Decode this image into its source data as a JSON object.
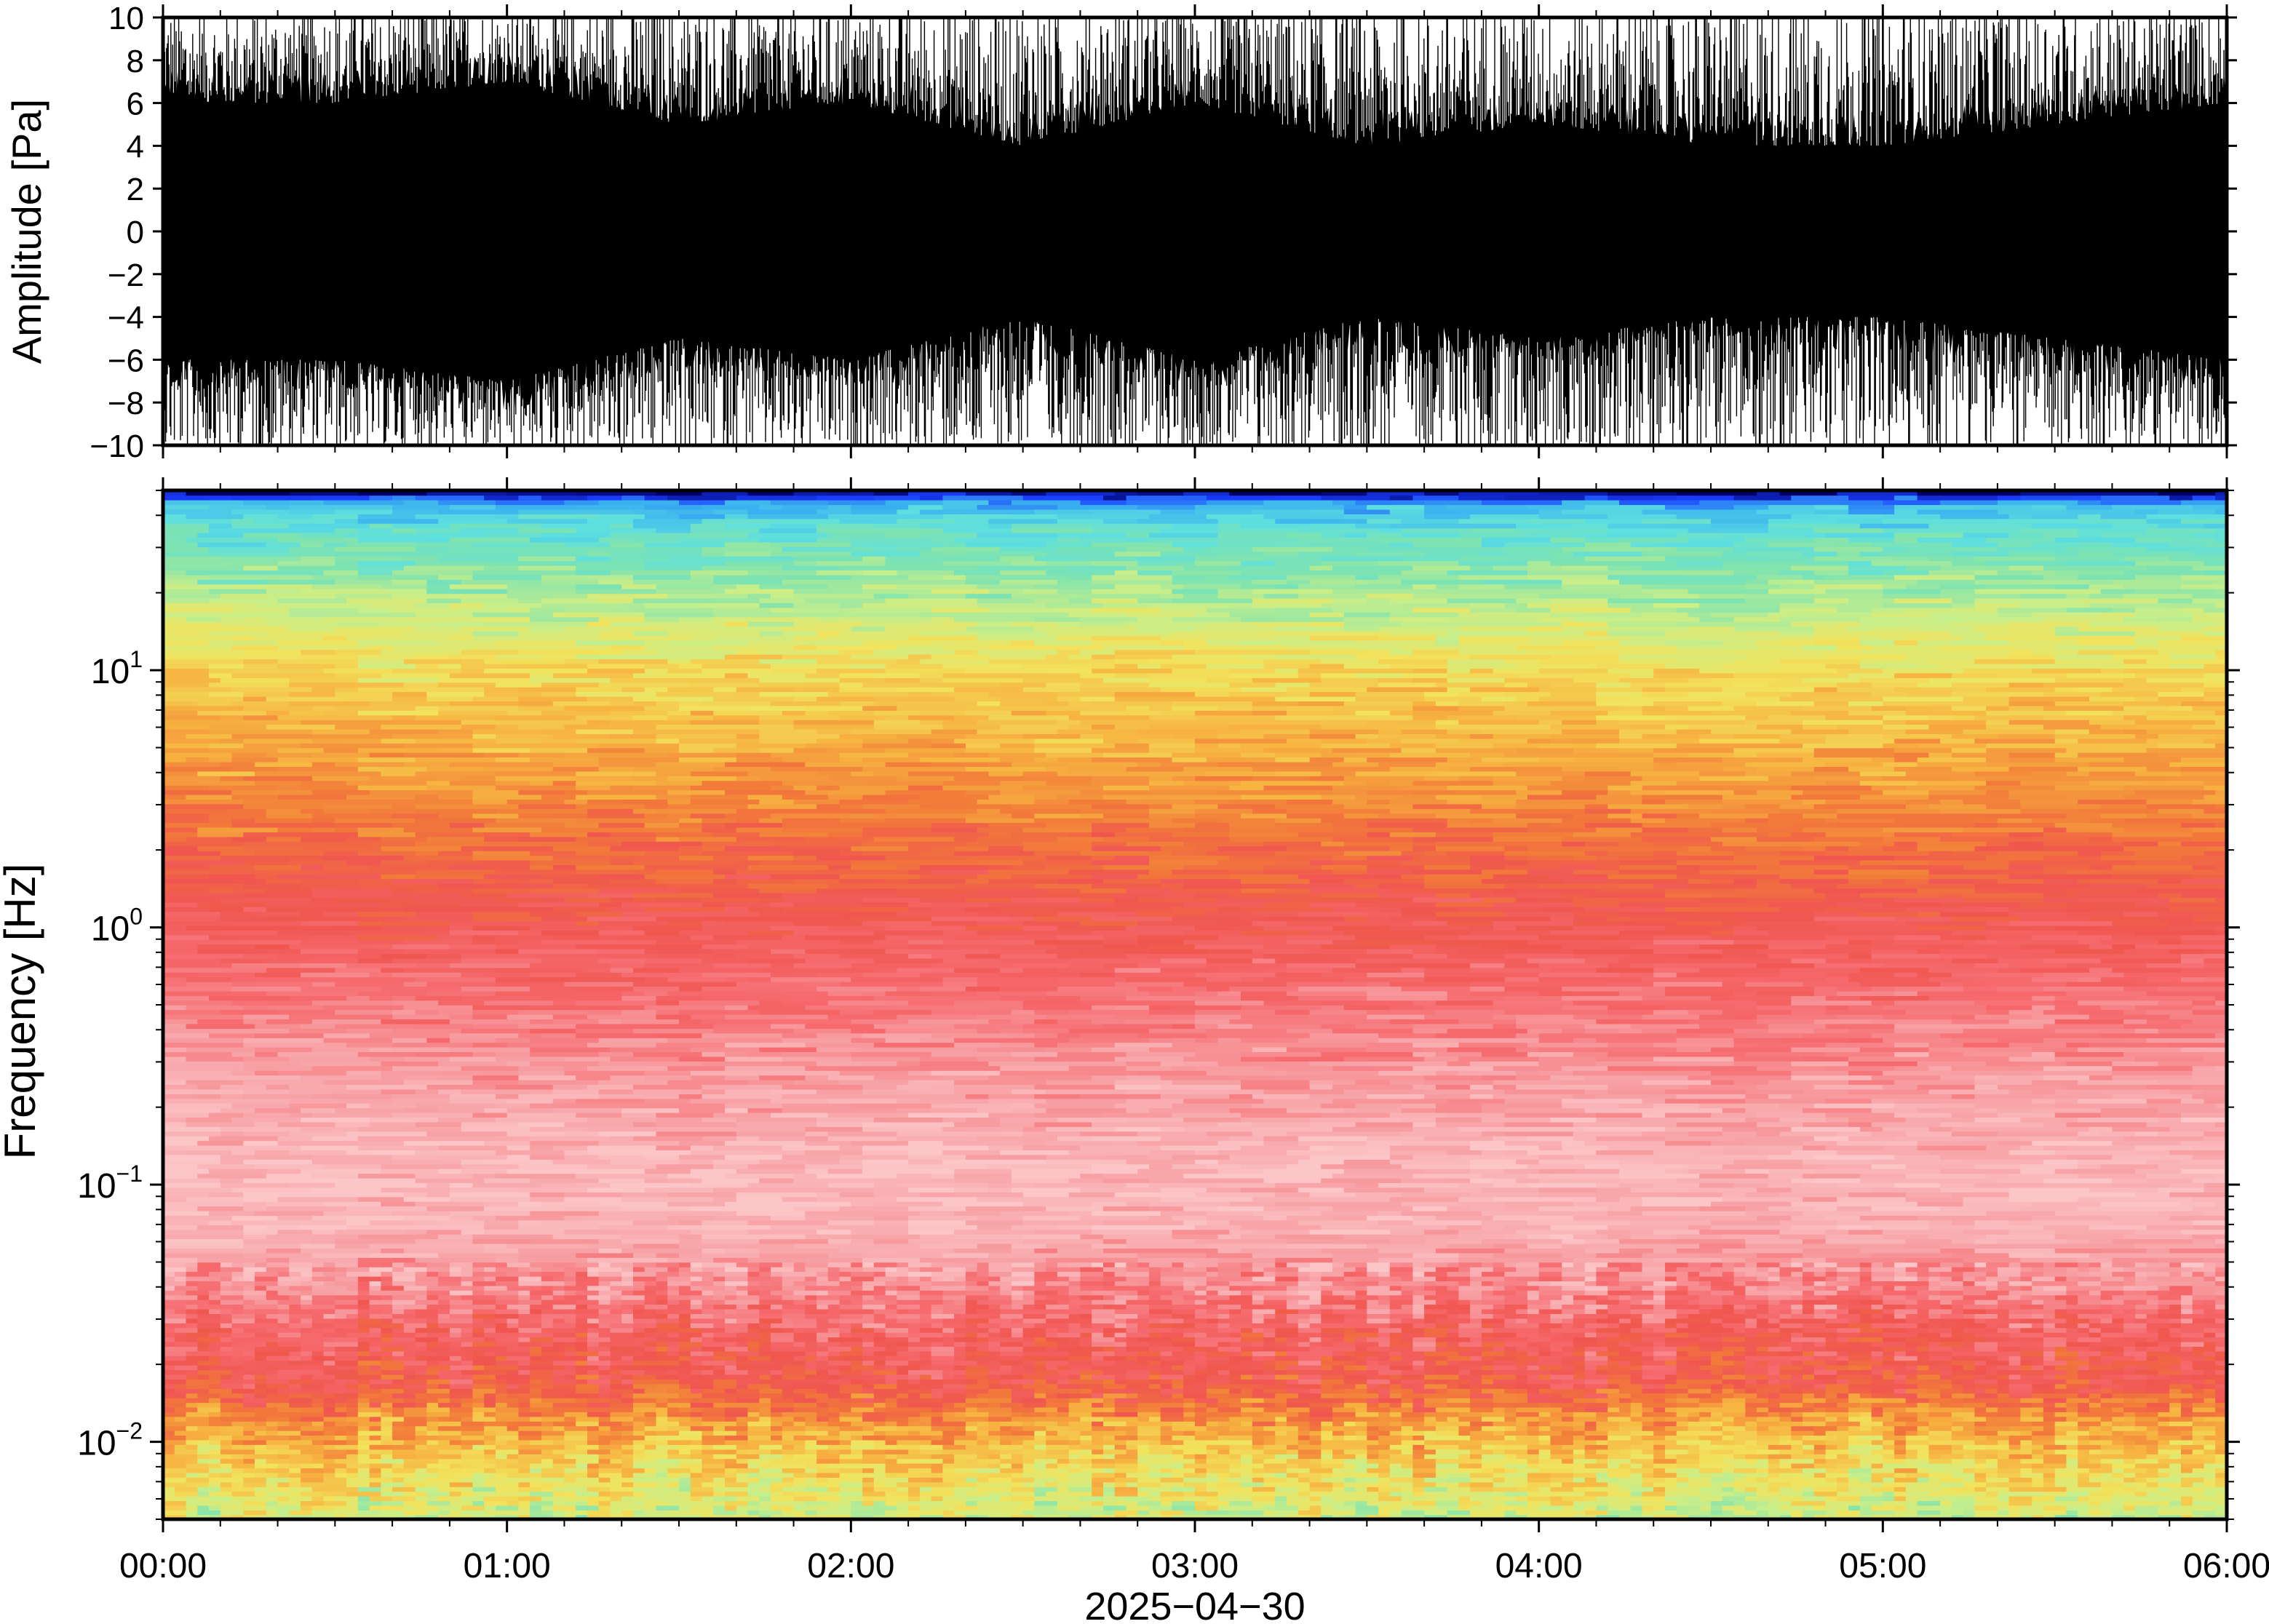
{
  "chart_data": [
    {
      "type": "line",
      "panel": "waveform",
      "ylabel": "Amplitude [Pa]",
      "ylim": [
        -10,
        10
      ],
      "yticks": [
        -10,
        -8,
        -6,
        -4,
        -2,
        0,
        2,
        4,
        6,
        8,
        10
      ],
      "ytick_labels": [
        "−10",
        "−8",
        "−6",
        "−4",
        "−2",
        "0",
        "2",
        "4",
        "6",
        "8",
        "10"
      ],
      "xlim": [
        "00:00",
        "06:00"
      ],
      "series": [
        {
          "color": "#000000",
          "x": [
            "00:00",
            "00:30",
            "01:00",
            "01:30",
            "02:00",
            "02:30",
            "03:00",
            "03:30",
            "04:00",
            "04:30",
            "05:00",
            "05:30",
            "06:00"
          ],
          "envelope_max": [
            10,
            10,
            10,
            10,
            10,
            10,
            10,
            10,
            10,
            10,
            10,
            10,
            10
          ],
          "envelope_min": [
            -10,
            -10,
            -10,
            -10,
            -10,
            -10,
            -10,
            -10,
            -10,
            -10,
            -10,
            -10,
            -10
          ],
          "core_max": [
            6,
            6,
            7,
            5,
            6,
            4,
            6,
            4,
            5,
            4,
            4,
            5,
            6
          ],
          "core_min": [
            -6,
            -6,
            -7,
            -5,
            -6,
            -4,
            -6,
            -4,
            -5,
            -4,
            -4,
            -5,
            -6
          ]
        }
      ],
      "grid": false
    },
    {
      "type": "heatmap",
      "panel": "spectrogram",
      "ylabel": "Frequency [Hz]",
      "xlabel": "2025−04−30",
      "y_scale": "log",
      "ylim": [
        0.005,
        50
      ],
      "yticks": [
        0.01,
        0.1,
        1,
        10
      ],
      "ytick_labels": [
        {
          "base": "10",
          "exp": "−2"
        },
        {
          "base": "10",
          "exp": "−1"
        },
        {
          "base": "10",
          "exp": "0"
        },
        {
          "base": "10",
          "exp": "1"
        }
      ],
      "xlim": [
        "00:00",
        "06:00"
      ],
      "xtick_labels": [
        "00:00",
        "01:00",
        "02:00",
        "03:00",
        "04:00",
        "05:00",
        "06:00"
      ],
      "colormap": [
        "#000066",
        "#1a3cff",
        "#3ab0f0",
        "#5ddfe0",
        "#7fe3b0",
        "#c8ee8a",
        "#f2e35d",
        "#f7b441",
        "#f27a3a",
        "#f0564f",
        "#f66a6e",
        "#f7a0a4",
        "#fcc6c8"
      ],
      "profile_by_frequency_hz": [
        {
          "f": 0.005,
          "level": "light-green/yellow"
        },
        {
          "f": 0.01,
          "level": "yellow/orange"
        },
        {
          "f": 0.02,
          "level": "red"
        },
        {
          "f": 0.05,
          "level": "pink"
        },
        {
          "f": 0.1,
          "level": "pink"
        },
        {
          "f": 0.3,
          "level": "light red"
        },
        {
          "f": 1,
          "level": "red"
        },
        {
          "f": 3,
          "level": "orange"
        },
        {
          "f": 10,
          "level": "yellow"
        },
        {
          "f": 25,
          "level": "green/cyan"
        },
        {
          "f": 45,
          "level": "blue"
        },
        {
          "f": 48,
          "level": "dark navy"
        }
      ],
      "grid": false
    }
  ]
}
